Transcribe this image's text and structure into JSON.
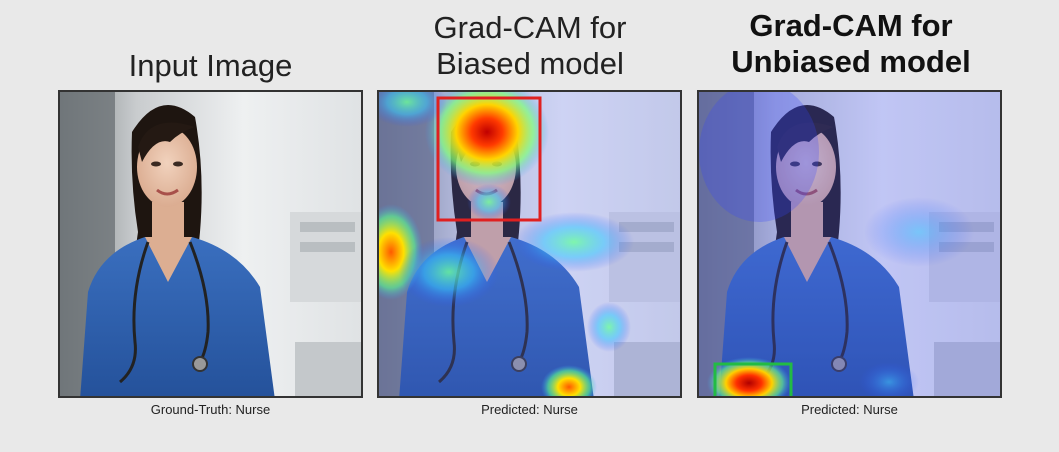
{
  "figure": {
    "panels": [
      {
        "title": [
          "Input Image"
        ],
        "caption": "Ground-Truth: Nurse"
      },
      {
        "title": [
          "Grad-CAM for",
          "Biased model"
        ],
        "caption": "Predicted: Nurse"
      },
      {
        "title": [
          "Grad-CAM for",
          "Unbiased model"
        ],
        "caption": "Predicted: Nurse"
      }
    ],
    "colors": {
      "scrubs": "#2c5fae",
      "biased_box": "#e02020",
      "unbiased_box": "#22bb44",
      "background": "#e9e9e9"
    }
  }
}
